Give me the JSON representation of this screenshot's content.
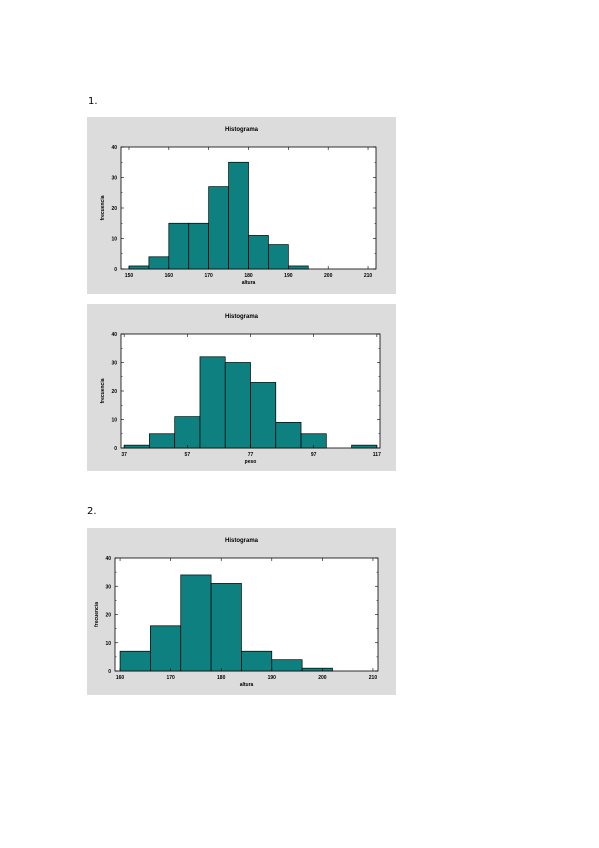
{
  "sections": [
    {
      "label": "1."
    },
    {
      "label": "2."
    }
  ],
  "colors": {
    "bar_fill": "#0f8080",
    "bar_stroke": "#000000",
    "panel_bg": "#dcdcdc",
    "plot_bg": "#ffffff"
  },
  "chart_data": [
    {
      "type": "bar",
      "title": "Histograma",
      "xlabel": "altura",
      "ylabel": "frecuencia",
      "xlim": [
        148,
        212
      ],
      "ylim": [
        0,
        40
      ],
      "xticks": [
        150,
        160,
        170,
        180,
        190,
        200,
        210
      ],
      "yticks": [
        0,
        10,
        20,
        30,
        40
      ],
      "bins": [
        {
          "x0": 150,
          "x1": 155,
          "value": 1
        },
        {
          "x0": 155,
          "x1": 160,
          "value": 4
        },
        {
          "x0": 160,
          "x1": 165,
          "value": 15
        },
        {
          "x0": 165,
          "x1": 170,
          "value": 15
        },
        {
          "x0": 170,
          "x1": 175,
          "value": 27
        },
        {
          "x0": 175,
          "x1": 180,
          "value": 35
        },
        {
          "x0": 180,
          "x1": 185,
          "value": 11
        },
        {
          "x0": 185,
          "x1": 190,
          "value": 8
        },
        {
          "x0": 190,
          "x1": 195,
          "value": 1
        },
        {
          "x0": 195,
          "x1": 200,
          "value": 0
        }
      ]
    },
    {
      "type": "bar",
      "title": "Histograma",
      "xlabel": "peso",
      "ylabel": "frecuencia",
      "xlim": [
        36,
        118
      ],
      "ylim": [
        0,
        40
      ],
      "xticks": [
        37,
        57,
        77,
        97,
        117
      ],
      "yticks": [
        0,
        10,
        20,
        30,
        40
      ],
      "bins": [
        {
          "x0": 37,
          "x1": 45,
          "value": 1
        },
        {
          "x0": 45,
          "x1": 53,
          "value": 5
        },
        {
          "x0": 53,
          "x1": 61,
          "value": 11
        },
        {
          "x0": 61,
          "x1": 69,
          "value": 32
        },
        {
          "x0": 69,
          "x1": 77,
          "value": 30
        },
        {
          "x0": 77,
          "x1": 85,
          "value": 23
        },
        {
          "x0": 85,
          "x1": 93,
          "value": 9
        },
        {
          "x0": 93,
          "x1": 101,
          "value": 5
        },
        {
          "x0": 101,
          "x1": 109,
          "value": 0
        },
        {
          "x0": 109,
          "x1": 117,
          "value": 1
        }
      ]
    },
    {
      "type": "bar",
      "title": "Histograma",
      "xlabel": "altura",
      "ylabel": "frecuencia",
      "xlim": [
        159,
        211
      ],
      "ylim": [
        0,
        40
      ],
      "xticks": [
        160,
        170,
        180,
        190,
        200,
        210
      ],
      "yticks": [
        0,
        10,
        20,
        30,
        40
      ],
      "bins": [
        {
          "x0": 160,
          "x1": 166,
          "value": 7
        },
        {
          "x0": 166,
          "x1": 172,
          "value": 16
        },
        {
          "x0": 172,
          "x1": 178,
          "value": 34
        },
        {
          "x0": 178,
          "x1": 184,
          "value": 31
        },
        {
          "x0": 184,
          "x1": 190,
          "value": 7
        },
        {
          "x0": 190,
          "x1": 196,
          "value": 4
        },
        {
          "x0": 196,
          "x1": 202,
          "value": 1
        }
      ]
    }
  ]
}
